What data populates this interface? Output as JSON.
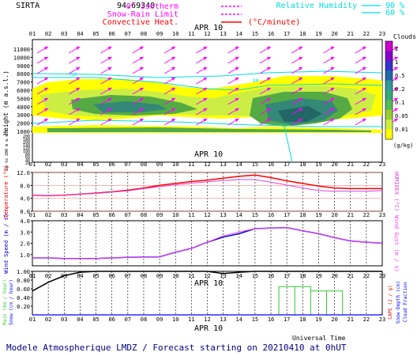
{
  "header": {
    "site": "SIRTA",
    "location_code": "94.69340",
    "legend_left": [
      {
        "label": "0° isotherm",
        "color": "#ff00ff",
        "style": "dashed"
      },
      {
        "label": "Snow-Rain Limit",
        "color": "#ff00ff",
        "style": "dashed"
      },
      {
        "label": "Convective Heat. (°C/minute)",
        "color": "#ff0000",
        "style": "solid"
      }
    ],
    "legend_right": [
      {
        "label": "Relative Humidity",
        "value": "90 %",
        "color": "#00dddd"
      },
      {
        "label": "",
        "value": "60 %",
        "color": "#00dddd"
      }
    ]
  },
  "date_label": "APR 10",
  "hours": [
    "01",
    "02",
    "03",
    "04",
    "05",
    "06",
    "07",
    "08",
    "09",
    "10",
    "11",
    "12",
    "13",
    "14",
    "15",
    "16",
    "17",
    "18",
    "19",
    "20",
    "21",
    "22",
    "23"
  ],
  "colors": {
    "clouds_yellow": "#ffff00",
    "clouds_lightgreen": "#ccee44",
    "clouds_green": "#55aa44",
    "clouds_teal": "#338877",
    "clouds_dark": "#226666",
    "wind_arrow": "#ff00ff",
    "rh": "#00dddd",
    "temp": "#ff0000",
    "humidex": "#dd44dd",
    "wind_speed": "#0000cc",
    "wind_gust": "#ff44ff",
    "cape": "#000000",
    "rain": "#33cc33",
    "snow": "#0000ff",
    "footer_text": "#000080",
    "bottom_right_label": "#cc0000"
  },
  "panels": {
    "clouds": {
      "ylabel": "Height (m a.s.l.)",
      "ylabel_lower": "Up to 200 m a.s.l.",
      "y_ticks_upper": [
        "11000",
        "10000",
        "9000",
        "8000",
        "7000",
        "6000",
        "5000",
        "4000",
        "3000",
        "2000",
        "1000"
      ],
      "y_ticks_lower": [
        "200",
        "180",
        "160",
        "140",
        "120",
        "100",
        "80",
        "60",
        "40",
        "20"
      ],
      "colorbar_title": "Clouds",
      "colorbar_ticks": [
        "2",
        "1",
        "0.5",
        "0.2",
        "0.1",
        "0.05",
        "0.01"
      ],
      "colorbar_unit": "(g/kg)",
      "colorbar_colors": [
        "#cc00cc",
        "#8800cc",
        "#3333cc",
        "#2266aa",
        "#339999",
        "#33aa77",
        "#55bb55",
        "#99cc33",
        "#ccee44",
        "#ffff00"
      ],
      "rh_labels": [
        "60",
        "90"
      ]
    },
    "temperature": {
      "ylabel": "Temperature (°C)",
      "ylabel_right": "HUMIDEX (°C)",
      "y_ticks": [
        "12.0",
        "8.0",
        "4.0",
        "0.0"
      ]
    },
    "wind": {
      "ylabel": "Wind Speed (m / s)",
      "ylabel_right": "Wind Gust (m / s)",
      "y_ticks": [
        "4.0",
        "3.0",
        "2.0",
        "1.0"
      ]
    },
    "precip": {
      "ylabel": "Rain (mm / hour)",
      "ylabel2": "Snow (cm / hour)",
      "ylabel_right": "CAPE (J / g)",
      "ylabel_right2": "Snow Depth (cm)",
      "ylabel_right3": "Cloud Fraction",
      "y_ticks": [
        "1.00",
        "0.80",
        "0.60",
        "0.40",
        "0.20"
      ],
      "xlabel": "Universal Time"
    }
  },
  "footer": {
    "text": "Modele Atmospherique LMDZ / Forecast starting on 20210410 at 0hUT"
  },
  "chart_data": [
    {
      "type": "heatmap",
      "title": "",
      "xlabel": "",
      "ylabel": "Height (m a.s.l.)",
      "x": [
        "01",
        "02",
        "03",
        "04",
        "05",
        "06",
        "07",
        "08",
        "09",
        "10",
        "11",
        "12",
        "13",
        "14",
        "15",
        "16",
        "17",
        "18",
        "19",
        "20",
        "21",
        "22",
        "23"
      ],
      "ylim": [
        0,
        12000
      ],
      "note_units": "(g/kg)"
    },
    {
      "type": "line",
      "xlabel": "",
      "ylabel": "Temperature (°C)",
      "x": [
        "01",
        "02",
        "03",
        "04",
        "05",
        "06",
        "07",
        "08",
        "09",
        "10",
        "11",
        "12",
        "13",
        "14",
        "15",
        "16",
        "17",
        "18",
        "19",
        "20",
        "21",
        "22",
        "23"
      ],
      "ylim": [
        0,
        12
      ],
      "series": [
        {
          "name": "Temperature",
          "values": [
            5.0,
            4.8,
            5.0,
            5.3,
            5.6,
            6.0,
            6.5,
            7.2,
            8.0,
            8.6,
            9.2,
            9.6,
            10.2,
            10.8,
            11.2,
            10.4,
            9.4,
            8.6,
            7.8,
            7.2,
            7.0,
            7.0,
            7.0
          ]
        },
        {
          "name": "HUMIDEX",
          "values": [
            5.0,
            4.8,
            5.0,
            5.3,
            5.5,
            5.9,
            6.3,
            7.0,
            7.6,
            8.2,
            8.7,
            9.1,
            9.5,
            9.8,
            9.8,
            9.0,
            8.1,
            7.2,
            6.4,
            6.2,
            6.2,
            6.2,
            6.4
          ]
        }
      ]
    },
    {
      "type": "line",
      "xlabel": "",
      "ylabel": "Wind Speed (m / s)",
      "x": [
        "01",
        "02",
        "03",
        "04",
        "05",
        "06",
        "07",
        "08",
        "09",
        "10",
        "11",
        "12",
        "13",
        "14",
        "15",
        "16",
        "17",
        "18",
        "19",
        "20",
        "21",
        "22",
        "23"
      ],
      "ylim": [
        0,
        4
      ],
      "series": [
        {
          "name": "Wind Speed",
          "values": [
            0.7,
            0.7,
            0.65,
            0.65,
            0.65,
            0.7,
            0.75,
            0.78,
            0.8,
            1.2,
            1.55,
            2.1,
            2.55,
            2.85,
            3.3,
            3.35,
            3.4,
            3.1,
            2.85,
            2.5,
            2.2,
            2.1,
            2.0
          ]
        },
        {
          "name": "Wind Gust",
          "values": [
            0.7,
            0.7,
            0.65,
            0.65,
            0.65,
            0.7,
            0.75,
            0.78,
            0.8,
            1.2,
            1.55,
            2.1,
            2.65,
            3.0,
            3.3,
            3.35,
            3.4,
            3.1,
            2.85,
            2.5,
            2.2,
            2.1,
            2.0
          ]
        }
      ]
    },
    {
      "type": "line",
      "xlabel": "Universal Time",
      "ylabel": "Rain (mm / hour)",
      "x": [
        "01",
        "02",
        "03",
        "04",
        "05",
        "06",
        "07",
        "08",
        "09",
        "10",
        "11",
        "12",
        "13",
        "14",
        "15",
        "16",
        "17",
        "18",
        "19",
        "20",
        "21",
        "22",
        "23"
      ],
      "ylim": [
        0,
        1.0
      ],
      "series": [
        {
          "name": "Cloud Fraction",
          "values": [
            0.55,
            0.75,
            0.9,
            0.98,
            1.0,
            1.0,
            1.0,
            1.0,
            1.0,
            1.0,
            1.0,
            1.0,
            0.95,
            0.98,
            1.0,
            1.0,
            1.0,
            1.0,
            1.0,
            1.0,
            1.0,
            1.0,
            1.0
          ]
        },
        {
          "name": "Rain",
          "values": [
            0,
            0,
            0,
            0,
            0,
            0,
            0,
            0,
            0,
            0,
            0,
            0,
            0,
            0,
            0,
            0,
            0.65,
            0.65,
            0.55,
            0.55,
            0,
            0,
            0
          ]
        }
      ]
    }
  ]
}
